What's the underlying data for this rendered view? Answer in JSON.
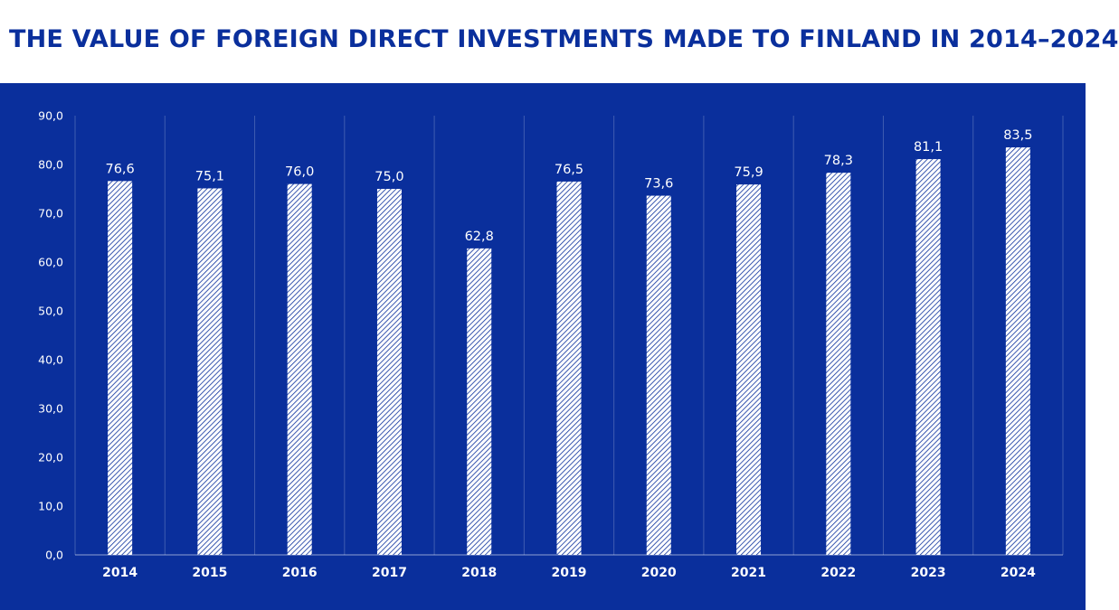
{
  "header": {
    "title": "THE VALUE OF FOREIGN DIRECT INVESTMENTS MADE TO FINLAND IN 2014–2024"
  },
  "colors": {
    "background": "#0a2f9c",
    "title": "#0a2f9c",
    "bar_fill": "#ffffff",
    "bar_hatch": "#0a2f9c"
  },
  "chart_data": {
    "type": "bar",
    "title": "THE VALUE OF FOREIGN DIRECT INVESTMENTS MADE TO FINLAND IN 2014–2024",
    "xlabel": "",
    "ylabel": "",
    "categories": [
      "2014",
      "2015",
      "2016",
      "2017",
      "2018",
      "2019",
      "2020",
      "2021",
      "2022",
      "2023",
      "2024"
    ],
    "values": [
      76.6,
      75.1,
      76.0,
      75.0,
      62.8,
      76.5,
      73.6,
      75.9,
      78.3,
      81.1,
      83.5
    ],
    "value_labels": [
      "76,6",
      "75,1",
      "76,0",
      "75,0",
      "62,8",
      "76,5",
      "73,6",
      "75,9",
      "78,3",
      "81,1",
      "83,5"
    ],
    "ylim": [
      0,
      90
    ],
    "yticks": [
      0,
      10,
      20,
      30,
      40,
      50,
      60,
      70,
      80,
      90
    ],
    "ytick_labels": [
      "0,0",
      "10,0",
      "20,0",
      "30,0",
      "40,0",
      "50,0",
      "60,0",
      "70,0",
      "80,0",
      "90,0"
    ],
    "bar_pattern": "diagonal-hatch",
    "grid": "vertical-separators",
    "legend": "none"
  }
}
